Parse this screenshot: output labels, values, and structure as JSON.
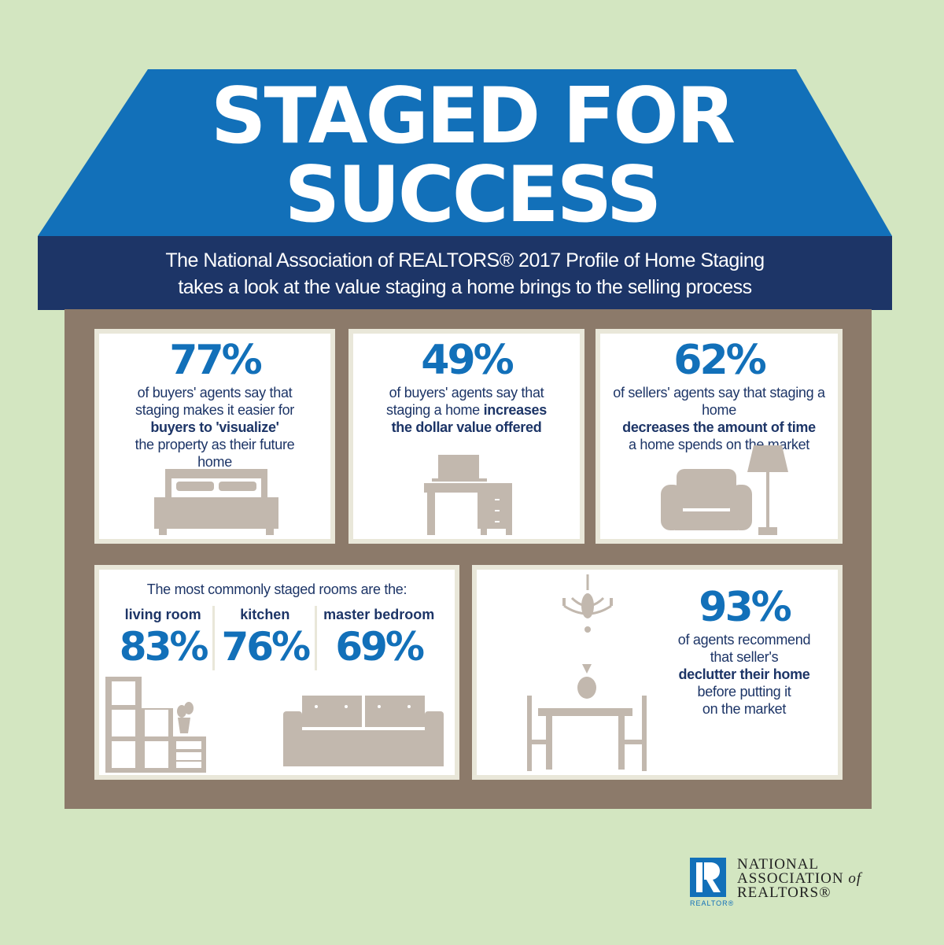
{
  "header": {
    "title_line1": "STAGED FOR",
    "title_line2": "SUCCESS",
    "subtitle_line1": "The National Association of REALTORS® 2017 Profile of Home Staging",
    "subtitle_line2": "takes a look at the value staging a home brings to the selling process"
  },
  "stats": [
    {
      "value": "77%",
      "pre": "of buyers' agents say that staging makes it easier for",
      "bold": "buyers to 'visualize'",
      "post": "the property as their future home",
      "icon": "bed-icon"
    },
    {
      "value": "49%",
      "pre": "of buyers' agents say that staging a home",
      "bold": "increases the dollar value offered",
      "post": "",
      "icon": "desk-icon"
    },
    {
      "value": "62%",
      "pre": "of sellers' agents say that staging a home",
      "bold": "decreases the amount of time",
      "post": "a home spends on the market",
      "icon": "armchair-lamp-icon"
    }
  ],
  "rooms": {
    "heading": "The most commonly staged rooms are the:",
    "items": [
      {
        "label": "living room",
        "value": "83%"
      },
      {
        "label": "kitchen",
        "value": "76%"
      },
      {
        "label": "master bedroom",
        "value": "69%"
      }
    ]
  },
  "declutter": {
    "value": "93%",
    "line1": "of agents recommend",
    "line2": "that seller's",
    "bold": "declutter their home",
    "line3": "before putting it",
    "line4": "on the market"
  },
  "logo": {
    "line1": "NATIONAL",
    "line2": "ASSOCIATION",
    "of": "of",
    "line3": "REALTORS®",
    "badge": "REALTOR®"
  },
  "colors": {
    "background": "#d3e6c1",
    "roof": "#1270b9",
    "band": "#1d3567",
    "house": "#8c7a6a",
    "accent": "#1270b9",
    "furniture": "#c2b8ae"
  }
}
